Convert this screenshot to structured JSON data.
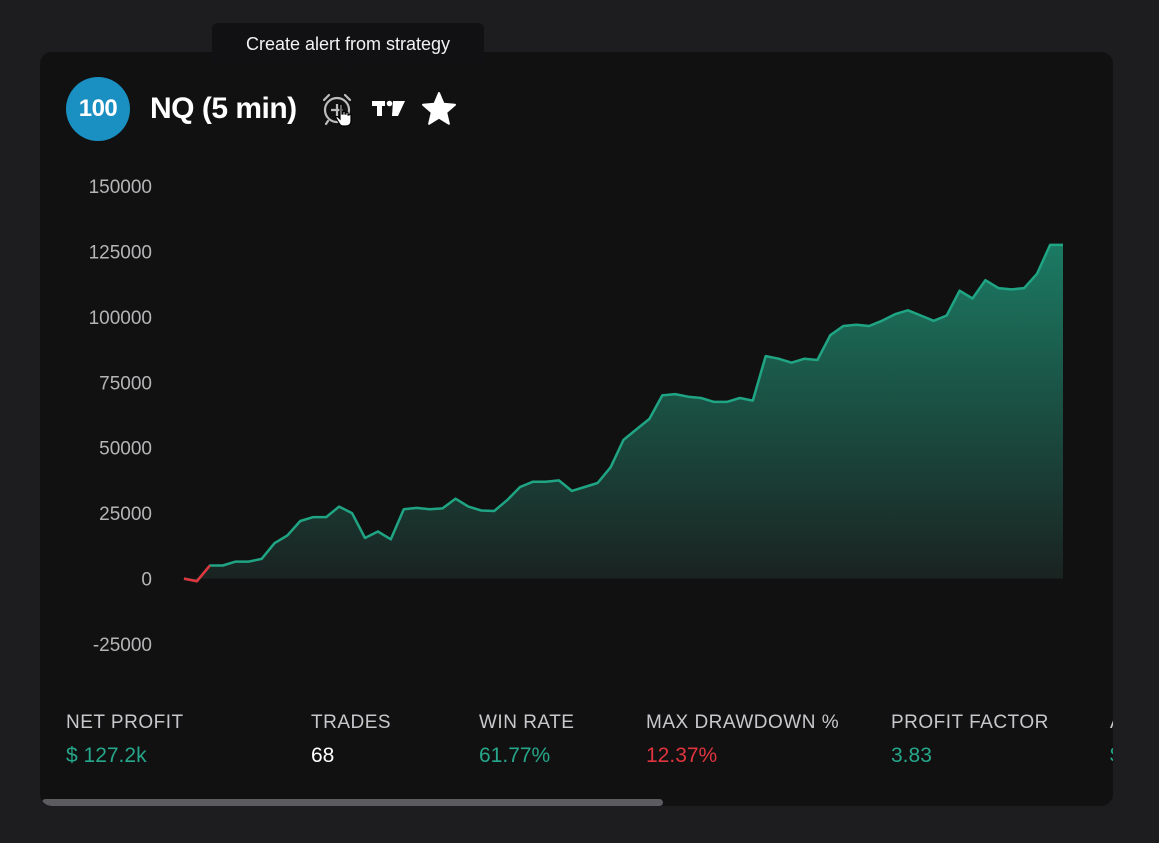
{
  "tooltip": {
    "text": "Create alert from strategy"
  },
  "card": {
    "rank": "100",
    "title": "NQ (5 min)",
    "icons": [
      "alarm-plus-icon",
      "tradingview-logo-icon",
      "star-icon",
      "hand-pointer-cursor-icon"
    ]
  },
  "colors": {
    "positive": "#26a68a",
    "negative": "#e0343e",
    "line": "#1fa584",
    "badge": "#1a8fc1",
    "neutral": "#ffffff"
  },
  "chart_data": {
    "type": "area",
    "yticks": [
      150000,
      125000,
      100000,
      75000,
      50000,
      25000,
      0,
      -25000
    ],
    "ylim": [
      -25000,
      150000
    ],
    "x": [
      0,
      1,
      2,
      3,
      4,
      5,
      6,
      7,
      8,
      9,
      10,
      11,
      12,
      13,
      14,
      15,
      16,
      17,
      18,
      19,
      20,
      21,
      22,
      23,
      24,
      25,
      26,
      27,
      28,
      29,
      30,
      31,
      32,
      33,
      34,
      35,
      36,
      37,
      38,
      39,
      40,
      41,
      42,
      43,
      44,
      45,
      46,
      47,
      48,
      49,
      50,
      51,
      52,
      53,
      54,
      55,
      56,
      57,
      58,
      59,
      60,
      61,
      62,
      63,
      64,
      65,
      66,
      67,
      68
    ],
    "values": [
      0,
      -1000,
      5000,
      5000,
      6500,
      6500,
      7500,
      13500,
      16500,
      22000,
      23500,
      23500,
      27500,
      25000,
      15500,
      18000,
      15000,
      26500,
      27000,
      26500,
      26800,
      30500,
      27500,
      26000,
      25800,
      30000,
      35000,
      37000,
      37000,
      37500,
      33500,
      35000,
      36500,
      42500,
      53000,
      57000,
      61000,
      70000,
      70500,
      69500,
      69000,
      67500,
      67500,
      69000,
      68000,
      85000,
      84000,
      82500,
      84000,
      83500,
      93000,
      96500,
      97000,
      96500,
      98500,
      101000,
      102500,
      100500,
      98500,
      100500,
      110000,
      107000,
      114000,
      111000,
      110500,
      111000,
      116500,
      127500,
      127500
    ],
    "negative_range": [
      0,
      1
    ]
  },
  "stats": [
    {
      "label": "NET PROFIT",
      "value": "$ 127.2k",
      "tone": "positive"
    },
    {
      "label": "TRADES",
      "value": "68",
      "tone": "neutral"
    },
    {
      "label": "WIN RATE",
      "value": "61.77%",
      "tone": "positive"
    },
    {
      "label": "MAX DRAWDOWN %",
      "value": "12.37%",
      "tone": "negative"
    },
    {
      "label": "PROFIT FACTOR",
      "value": "3.83",
      "tone": "positive"
    },
    {
      "label": "A",
      "value": "$",
      "tone": "positive"
    }
  ]
}
